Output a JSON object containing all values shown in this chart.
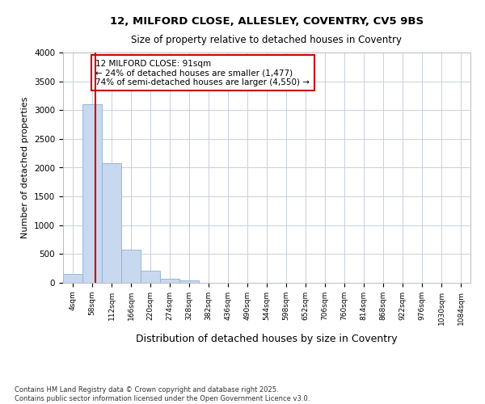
{
  "title_line1": "12, MILFORD CLOSE, ALLESLEY, COVENTRY, CV5 9BS",
  "title_line2": "Size of property relative to detached houses in Coventry",
  "xlabel": "Distribution of detached houses by size in Coventry",
  "ylabel": "Number of detached properties",
  "footer_line1": "Contains HM Land Registry data © Crown copyright and database right 2025.",
  "footer_line2": "Contains public sector information licensed under the Open Government Licence v3.0.",
  "bin_labels": [
    "4sqm",
    "58sqm",
    "112sqm",
    "166sqm",
    "220sqm",
    "274sqm",
    "328sqm",
    "382sqm",
    "436sqm",
    "490sqm",
    "544sqm",
    "598sqm",
    "652sqm",
    "706sqm",
    "760sqm",
    "814sqm",
    "868sqm",
    "922sqm",
    "976sqm",
    "1030sqm",
    "1084sqm"
  ],
  "bar_values": [
    150,
    3100,
    2080,
    580,
    205,
    65,
    40,
    0,
    0,
    0,
    0,
    0,
    0,
    0,
    0,
    0,
    0,
    0,
    0,
    0,
    0
  ],
  "bar_color": "#c8d8ee",
  "bar_edge_color": "#8ab0d8",
  "annotation_title": "12 MILFORD CLOSE: 91sqm",
  "annotation_line1": "← 24% of detached houses are smaller (1,477)",
  "annotation_line2": "74% of semi-detached houses are larger (4,550) →",
  "annotation_box_color": "#ffffff",
  "annotation_box_edge": "#cc0000",
  "red_line_color": "#cc0000",
  "red_line_bar_index": 1,
  "ylim": [
    0,
    4000
  ],
  "yticks": [
    0,
    500,
    1000,
    1500,
    2000,
    2500,
    3000,
    3500,
    4000
  ],
  "background_color": "#ffffff",
  "grid_color": "#c8d0dc"
}
